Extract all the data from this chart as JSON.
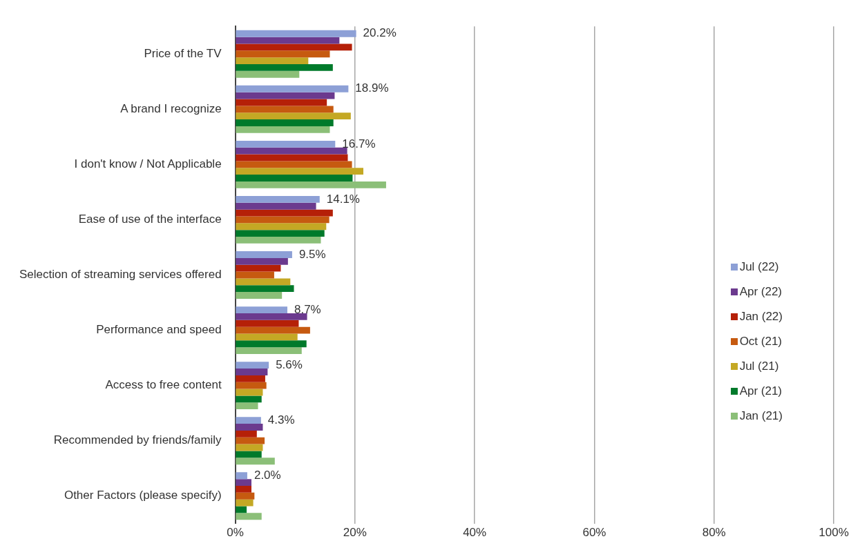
{
  "chart_data": {
    "type": "bar",
    "orientation": "horizontal",
    "categories": [
      "Price of the TV",
      "A brand I recognize",
      "I don't know / Not Applicable",
      "Ease of use of the interface",
      "Selection of streaming services offered",
      "Performance and speed",
      "Access to free content",
      "Recommended by friends/family",
      "Other Factors (please specify)"
    ],
    "series": [
      {
        "name": "Jul (22)",
        "color": "#8da0d6",
        "values": [
          20.2,
          18.9,
          16.7,
          14.1,
          9.5,
          8.7,
          5.6,
          4.3,
          2.0
        ],
        "value_labels": [
          "20.2%",
          "18.9%",
          "16.7%",
          "14.1%",
          "9.5%",
          "8.7%",
          "5.6%",
          "4.3%",
          "2.0%"
        ]
      },
      {
        "name": "Apr (22)",
        "color": "#6b3a8e",
        "values": [
          17.4,
          16.6,
          18.7,
          13.5,
          8.8,
          12.0,
          5.4,
          4.6,
          2.7
        ]
      },
      {
        "name": "Jan (22)",
        "color": "#b52008",
        "values": [
          19.5,
          15.3,
          18.8,
          16.3,
          7.6,
          10.6,
          5.0,
          3.6,
          2.7
        ]
      },
      {
        "name": "Oct (21)",
        "color": "#c65a10",
        "values": [
          15.8,
          16.4,
          19.5,
          15.7,
          6.5,
          12.5,
          5.2,
          4.9,
          3.2
        ]
      },
      {
        "name": "Jul (21)",
        "color": "#c4a824",
        "values": [
          12.2,
          19.3,
          21.4,
          15.2,
          9.2,
          10.4,
          4.6,
          4.6,
          3.0
        ]
      },
      {
        "name": "Apr (21)",
        "color": "#007a2b",
        "values": [
          16.3,
          16.4,
          19.6,
          14.9,
          9.8,
          11.9,
          4.4,
          4.4,
          1.9
        ]
      },
      {
        "name": "Jan (21)",
        "color": "#8bbf78",
        "values": [
          10.7,
          15.8,
          25.2,
          14.3,
          7.8,
          11.1,
          3.8,
          6.6,
          4.4
        ]
      }
    ],
    "xlim": [
      0,
      100
    ],
    "xticks": [
      {
        "value": 0,
        "label": "0%"
      },
      {
        "value": 20,
        "label": "20%"
      },
      {
        "value": 40,
        "label": "40%"
      },
      {
        "value": 60,
        "label": "60%"
      },
      {
        "value": 80,
        "label": "80%"
      },
      {
        "value": 100,
        "label": "100%"
      }
    ],
    "grid": "x",
    "legend": "right"
  }
}
